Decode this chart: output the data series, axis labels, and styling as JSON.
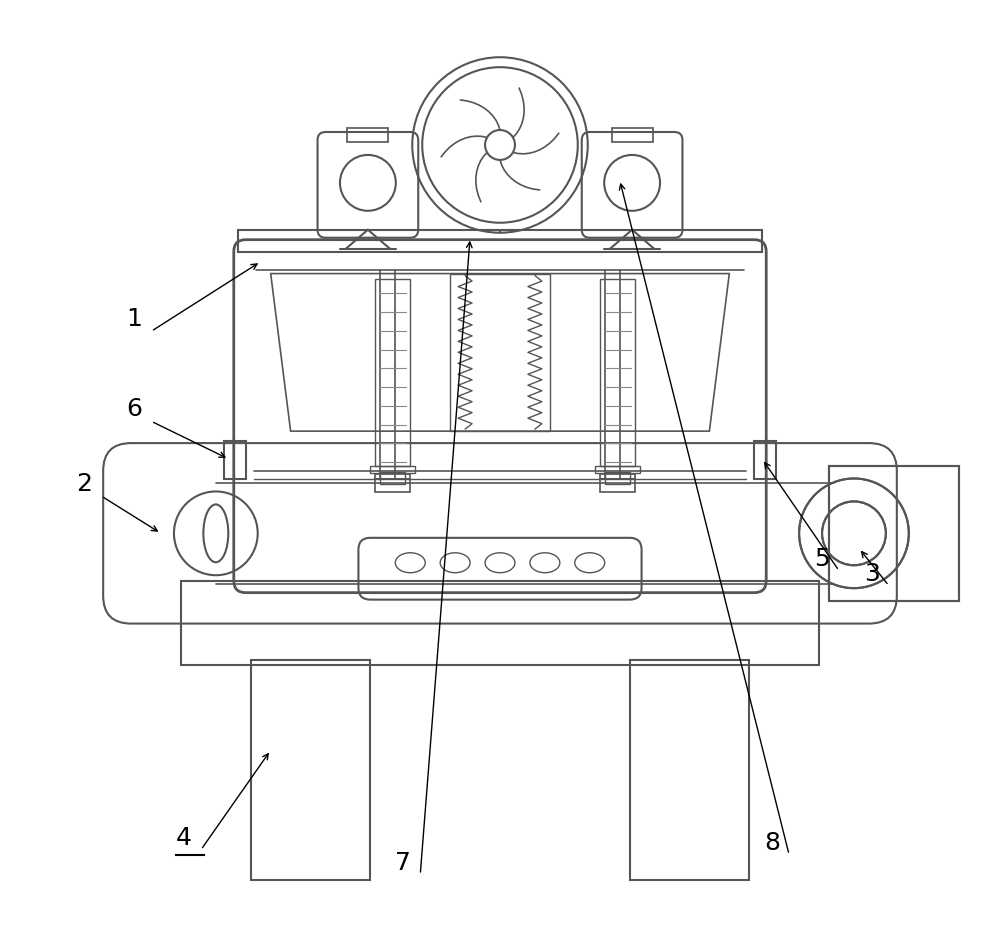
{
  "bg_color": "#ffffff",
  "lc": "#555555",
  "lw": 1.5,
  "figsize": [
    10.0,
    9.51
  ],
  "label_fontsize": 18
}
